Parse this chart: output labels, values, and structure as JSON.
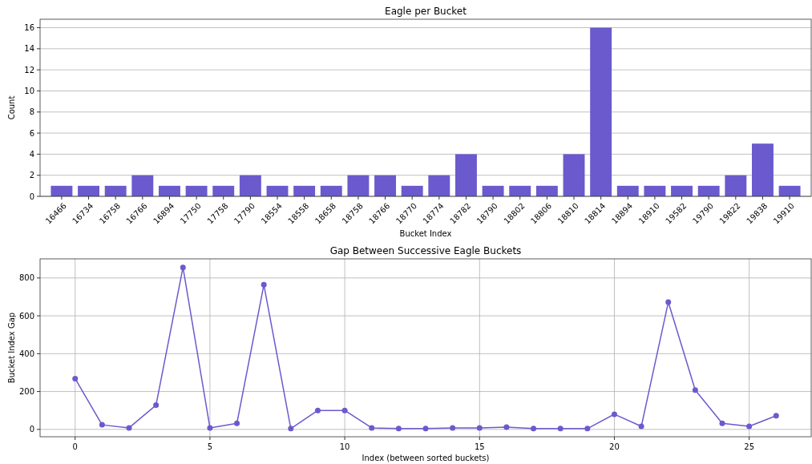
{
  "chart_data": [
    {
      "type": "bar",
      "title": "Eagle per Bucket",
      "xlabel": "Bucket Index",
      "ylabel": "Count",
      "categories": [
        "16466",
        "16734",
        "16758",
        "16766",
        "16894",
        "17750",
        "17758",
        "17790",
        "18554",
        "18558",
        "18658",
        "18758",
        "18766",
        "18770",
        "18774",
        "18782",
        "18790",
        "18802",
        "18806",
        "18810",
        "18814",
        "18894",
        "18910",
        "19582",
        "19790",
        "19822",
        "19838",
        "19910"
      ],
      "values": [
        1,
        1,
        1,
        2,
        1,
        1,
        1,
        2,
        1,
        1,
        1,
        2,
        2,
        1,
        2,
        4,
        1,
        1,
        1,
        4,
        16,
        1,
        1,
        1,
        1,
        2,
        5,
        1
      ],
      "color": "#6a5acd",
      "ylim": [
        0,
        16.8
      ],
      "yticks": [
        0,
        2,
        4,
        6,
        8,
        10,
        12,
        14,
        16
      ],
      "grid": "y"
    },
    {
      "type": "line",
      "title": "Gap Between Successive Eagle Buckets",
      "xlabel": "Index (between sorted buckets)",
      "ylabel": "Bucket Index Gap",
      "x": [
        0,
        1,
        2,
        3,
        4,
        5,
        6,
        7,
        8,
        9,
        10,
        11,
        12,
        13,
        14,
        15,
        16,
        17,
        18,
        19,
        20,
        21,
        22,
        23,
        24,
        25,
        26
      ],
      "values": [
        268,
        24,
        8,
        128,
        856,
        8,
        32,
        764,
        4,
        100,
        100,
        8,
        4,
        4,
        8,
        8,
        12,
        4,
        4,
        4,
        80,
        16,
        672,
        208,
        32,
        16,
        72
      ],
      "color": "#6a5acd",
      "marker": "circle",
      "xlim": [
        -1.3,
        27.3
      ],
      "xticks": [
        0,
        5,
        10,
        15,
        20,
        25
      ],
      "ylim": [
        -39,
        901
      ],
      "yticks": [
        0,
        200,
        400,
        600,
        800
      ],
      "grid": true
    }
  ]
}
